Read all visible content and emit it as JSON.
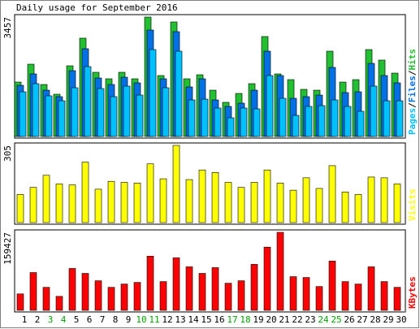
{
  "chart_data": [
    {
      "type": "bar",
      "title": "Daily usage for September 2016",
      "ylim": [
        0,
        3457
      ],
      "yticks": [
        3457
      ],
      "legend_separator": "/",
      "series": [
        {
          "name": "Pages",
          "color": "#00c0ff",
          "values": [
            1293,
            1528,
            1176,
            1034,
            1411,
            2022,
            1387,
            1152,
            1458,
            1199,
            2516,
            1411,
            2469,
            1058,
            1081,
            823,
            541,
            823,
            799,
            1764,
            1105,
            611,
            870,
            893,
            1058,
            870,
            729,
            1458,
            1034,
            1034
          ]
        },
        {
          "name": "Files",
          "color": "#0070e8",
          "values": [
            1481,
            1811,
            1340,
            1152,
            1905,
            2540,
            1693,
            1505,
            1716,
            1552,
            3081,
            1670,
            3034,
            1434,
            1670,
            1058,
            870,
            964,
            1340,
            2469,
            1764,
            1105,
            1152,
            1199,
            1999,
            1270,
            1293,
            2116,
            1764,
            1552
          ]
        },
        {
          "name": "Hits",
          "color": "#20c030",
          "values": [
            1575,
            2093,
            1505,
            1223,
            2046,
            2846,
            1858,
            1670,
            1858,
            1670,
            3457,
            1764,
            3316,
            1670,
            1787,
            1340,
            988,
            1246,
            1529,
            2893,
            1811,
            1646,
            1364,
            1340,
            2469,
            1575,
            1646,
            2516,
            2211,
            1834
          ]
        }
      ]
    },
    {
      "type": "bar",
      "ylim": [
        0,
        305
      ],
      "yticks": [
        305
      ],
      "series": [
        {
          "name": "Visits",
          "color": "#ffff00",
          "values": [
            111,
            139,
            187,
            153,
            149,
            239,
            132,
            163,
            159,
            156,
            232,
            173,
            305,
            170,
            208,
            198,
            159,
            139,
            159,
            208,
            156,
            128,
            177,
            135,
            225,
            121,
            111,
            180,
            177,
            153
          ]
        }
      ]
    },
    {
      "type": "bar",
      "ylim": [
        0,
        159427
      ],
      "yticks": [
        159427
      ],
      "categories": [
        "1",
        "2",
        "3",
        "4",
        "5",
        "6",
        "7",
        "8",
        "9",
        "10",
        "11",
        "12",
        "13",
        "14",
        "15",
        "16",
        "17",
        "18",
        "19",
        "20",
        "21",
        "22",
        "23",
        "24",
        "25",
        "26",
        "27",
        "28",
        "29",
        "30"
      ],
      "category_colors": [
        "#000",
        "#000",
        "#00a000",
        "#00a000",
        "#000",
        "#000",
        "#000",
        "#000",
        "#000",
        "#00a000",
        "#00a000",
        "#000",
        "#000",
        "#000",
        "#000",
        "#000",
        "#00a000",
        "#00a000",
        "#000",
        "#000",
        "#000",
        "#000",
        "#000",
        "#00a000",
        "#00a000",
        "#000",
        "#000",
        "#000",
        "#000",
        "#000"
      ],
      "series": [
        {
          "name": "KBytes",
          "color": "#ff0000",
          "values": [
            33560,
            77190,
            46980,
            28530,
            85580,
            75510,
            60410,
            46980,
            53700,
            57050,
            110750,
            58730,
            107390,
            88930,
            75510,
            87260,
            55370,
            60410,
            93970,
            129210,
            159427,
            68800,
            67120,
            48660,
            100680,
            58730,
            53700,
            88930,
            58730,
            46980
          ]
        }
      ]
    }
  ]
}
